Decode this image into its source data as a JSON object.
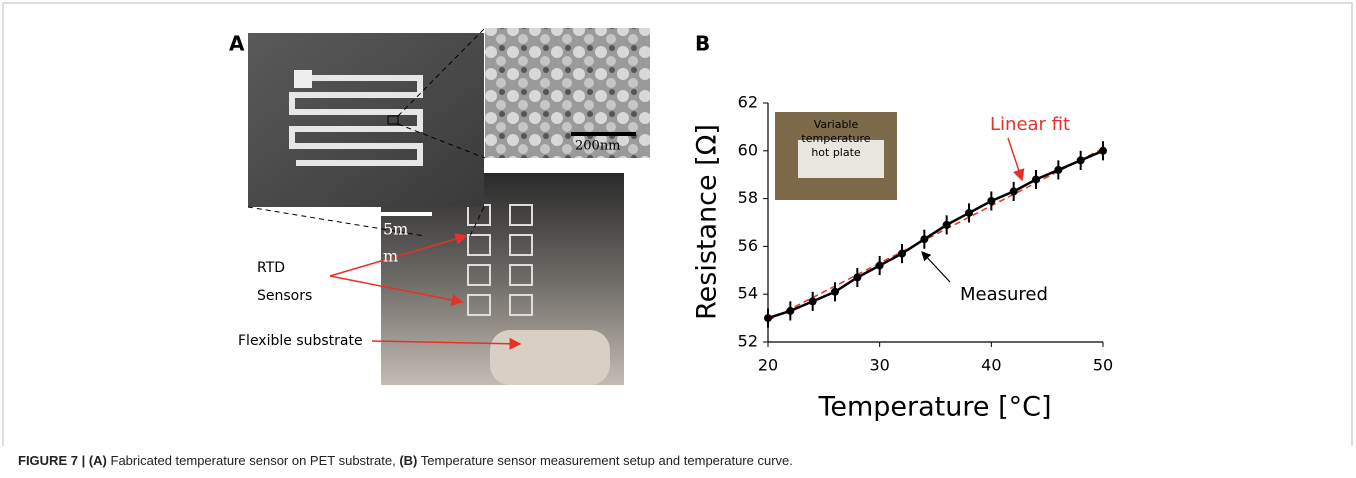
{
  "panel_a": {
    "label": "A",
    "scale_bar": [
      "5m",
      "m"
    ],
    "sem_scale": "200nm",
    "rtd_label": [
      "RTD",
      "Sensors"
    ],
    "substrate_label": "Flexible substrate"
  },
  "chart_data": {
    "type": "line",
    "panel_label": "B",
    "x_label": "Temperature [°C]",
    "y_label": "Resistance [Ω]",
    "x": [
      20,
      22,
      24,
      26,
      28,
      30,
      32,
      34,
      36,
      38,
      40,
      42,
      44,
      46,
      48,
      50
    ],
    "values": [
      53.0,
      53.3,
      53.7,
      54.1,
      54.7,
      55.2,
      55.7,
      56.3,
      56.9,
      57.4,
      57.9,
      58.3,
      58.8,
      59.2,
      59.6,
      60.0
    ],
    "errors": [
      0.4,
      0.4,
      0.4,
      0.4,
      0.4,
      0.4,
      0.4,
      0.4,
      0.4,
      0.4,
      0.4,
      0.4,
      0.4,
      0.4,
      0.4,
      0.4
    ],
    "color": "#000000",
    "fit": {
      "x": [
        20,
        50
      ],
      "values": [
        52.9,
        60.1
      ],
      "color": "#e8302a"
    },
    "xlim": [
      20,
      50
    ],
    "xticks": [
      20,
      30,
      40,
      50
    ],
    "ylim": [
      52,
      62
    ],
    "yticks": [
      52,
      54,
      56,
      58,
      60,
      62
    ],
    "annotations": {
      "fit": "Linear fit",
      "measured": "Measured"
    },
    "inset": [
      "Variable",
      "temperature",
      "hot plate"
    ]
  },
  "caption": [
    "FIGURE 7 | (A)",
    "Fabricated temperature sensor on PET substrate,",
    "(B)",
    "Temperature sensor measurement setup and temperature curve."
  ]
}
